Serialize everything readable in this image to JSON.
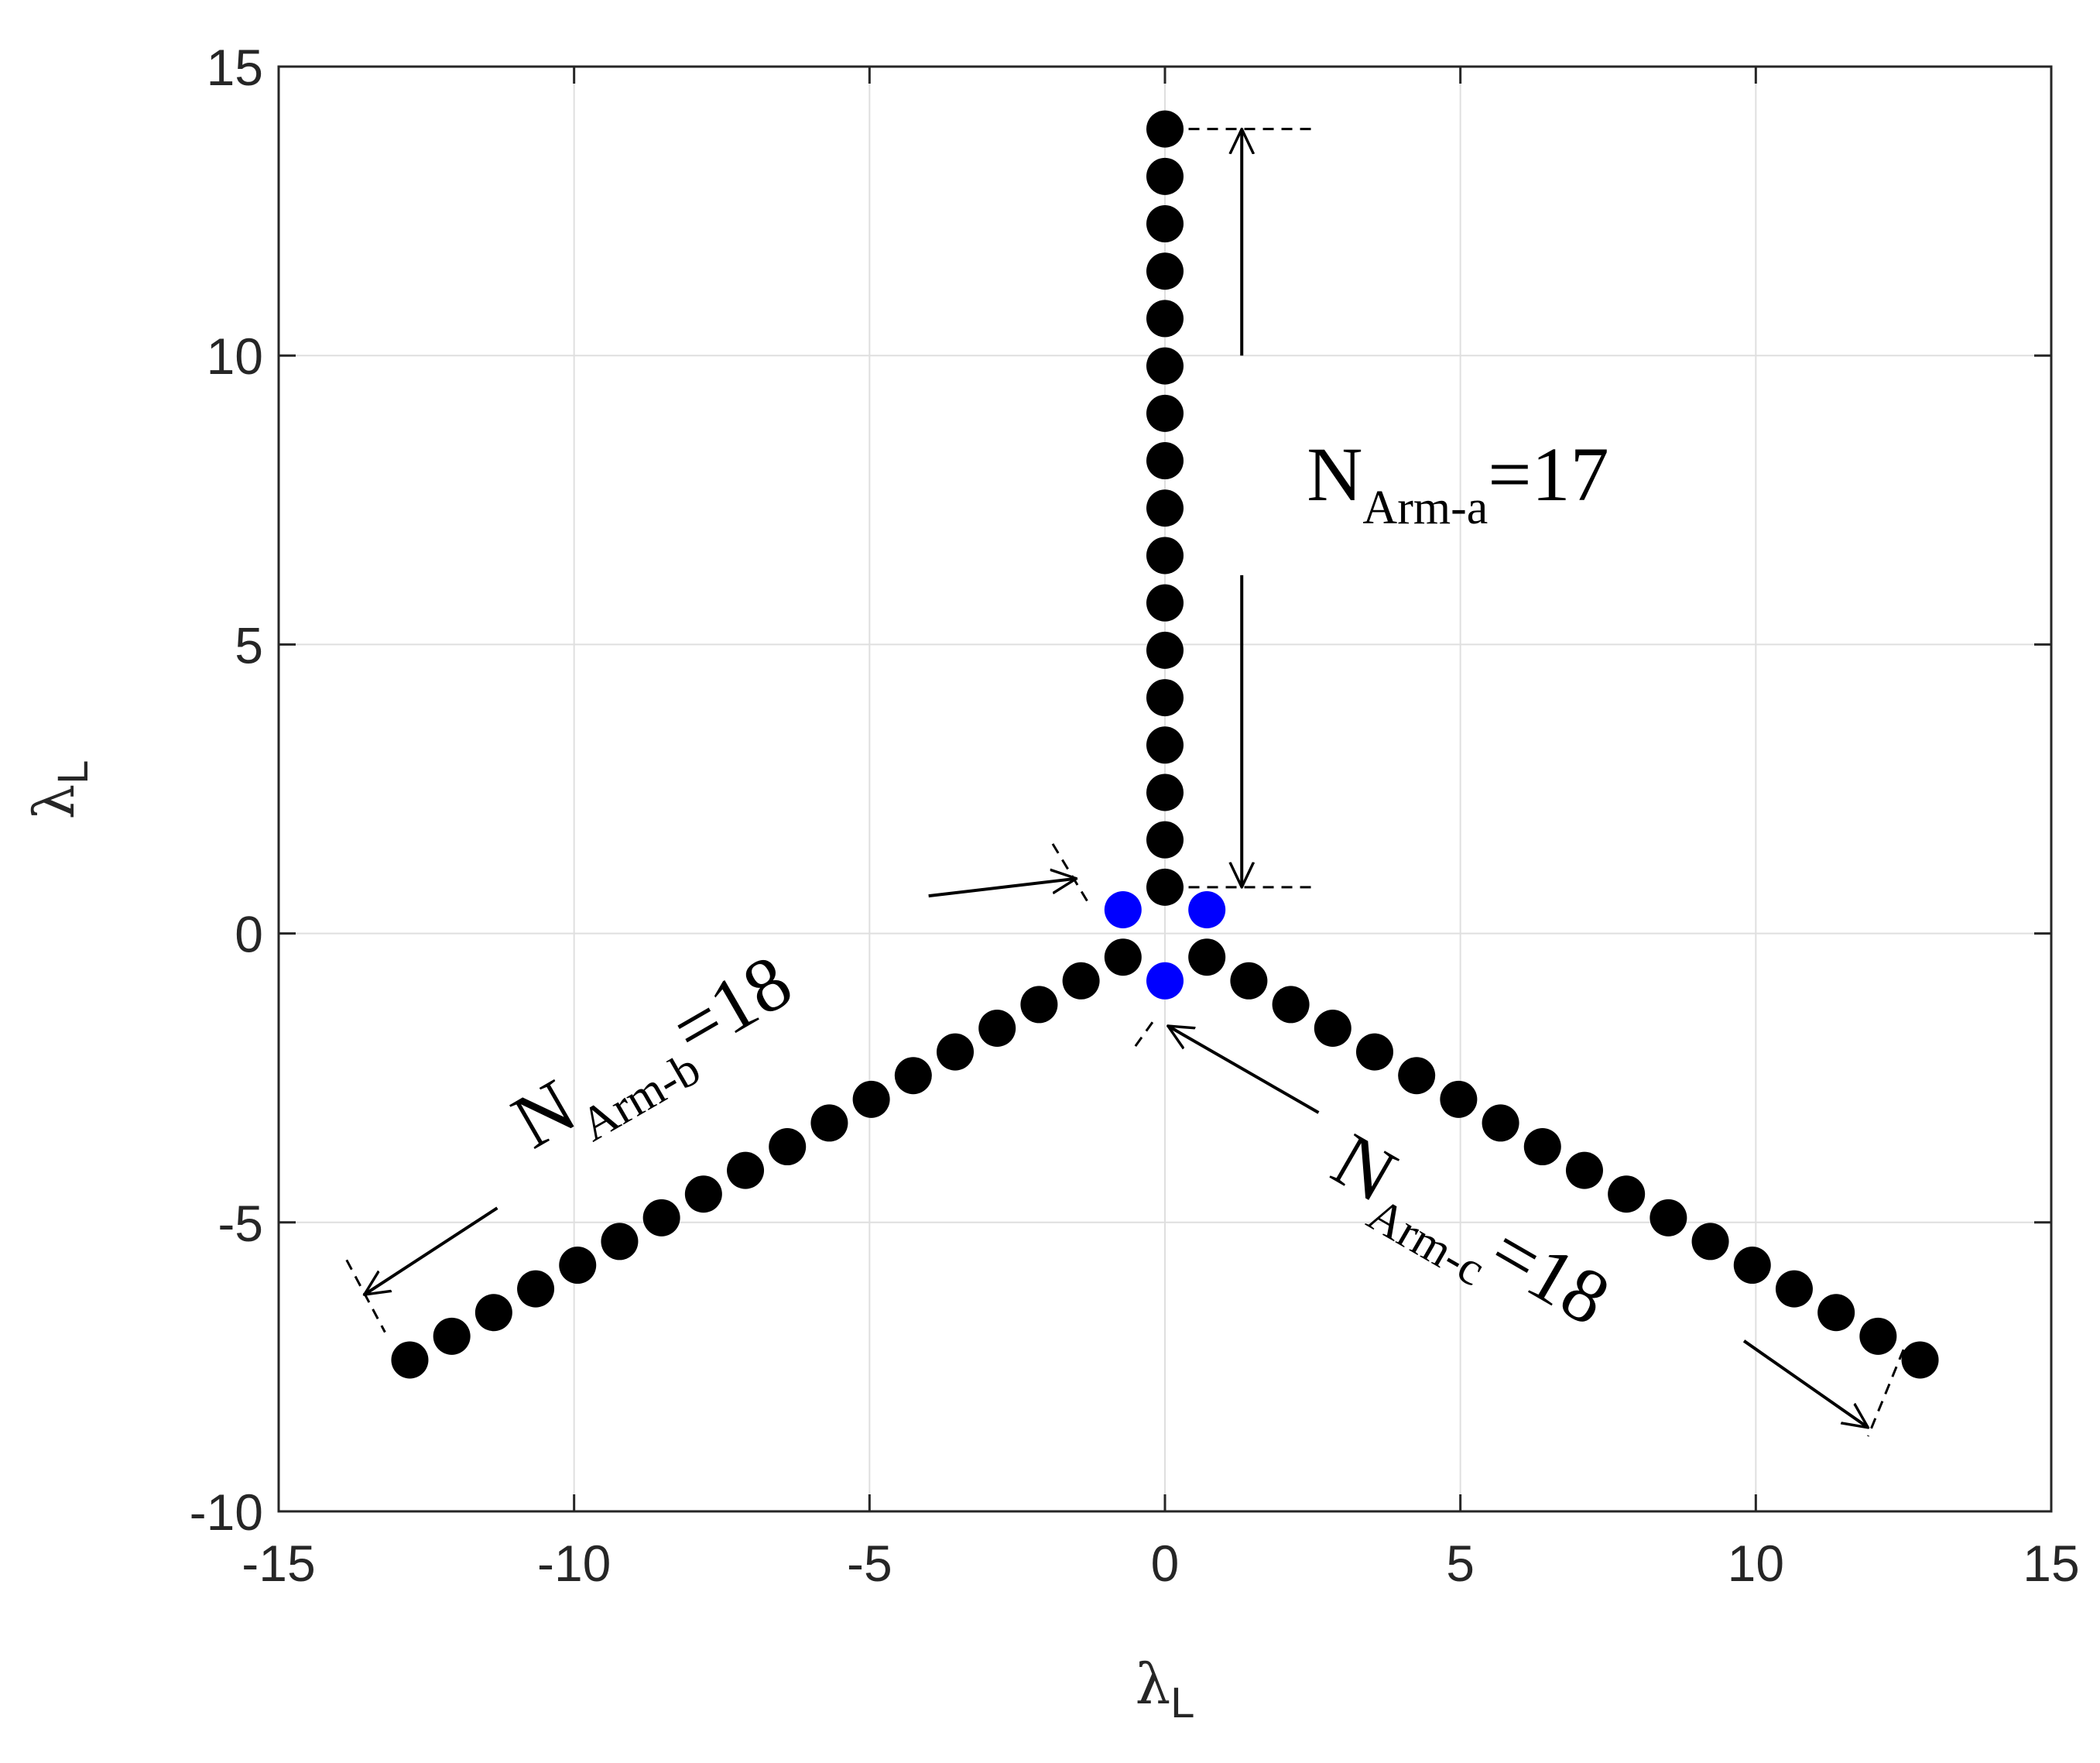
{
  "chart_data": {
    "type": "scatter",
    "title": "",
    "xlabel": {
      "symbol": "λ",
      "sub": "L"
    },
    "ylabel": {
      "symbol": "λ",
      "sub": "L"
    },
    "xlim": [
      -15,
      15
    ],
    "ylim": [
      -10,
      15
    ],
    "xticks": [
      -15,
      -10,
      -5,
      0,
      5,
      10,
      15
    ],
    "yticks": [
      -10,
      -5,
      0,
      5,
      10,
      15
    ],
    "xtick_labels": [
      "-15",
      "-10",
      "-5",
      "0",
      "5",
      "10",
      "15"
    ],
    "ytick_labels": [
      "-10",
      "-5",
      "0",
      "5",
      "10",
      "15"
    ],
    "grid": true,
    "series": [
      {
        "color": "#000000",
        "points": [
          [
            0,
            0.8
          ],
          [
            0,
            1.62
          ],
          [
            0,
            2.44
          ],
          [
            0,
            3.26
          ],
          [
            0,
            4.08
          ],
          [
            0,
            4.9
          ],
          [
            0,
            5.72
          ],
          [
            0,
            6.54
          ],
          [
            0,
            7.36
          ],
          [
            0,
            8.18
          ],
          [
            0,
            9.0
          ],
          [
            0,
            9.82
          ],
          [
            0,
            10.64
          ],
          [
            0,
            11.46
          ],
          [
            0,
            12.28
          ],
          [
            0,
            13.1
          ],
          [
            0,
            13.92
          ],
          [
            -0.71,
            -0.41
          ],
          [
            -1.42,
            -0.82
          ],
          [
            -2.13,
            -1.23
          ],
          [
            -2.84,
            -1.64
          ],
          [
            -3.55,
            -2.05
          ],
          [
            -4.26,
            -2.46
          ],
          [
            -4.97,
            -2.87
          ],
          [
            -5.68,
            -3.28
          ],
          [
            -6.39,
            -3.69
          ],
          [
            -7.1,
            -4.1
          ],
          [
            -7.81,
            -4.51
          ],
          [
            -8.52,
            -4.92
          ],
          [
            -9.23,
            -5.33
          ],
          [
            -9.94,
            -5.74
          ],
          [
            -10.65,
            -6.15
          ],
          [
            -11.36,
            -6.56
          ],
          [
            -12.07,
            -6.97
          ],
          [
            -12.78,
            -7.38
          ],
          [
            0.71,
            -0.41
          ],
          [
            1.42,
            -0.82
          ],
          [
            2.13,
            -1.23
          ],
          [
            2.84,
            -1.64
          ],
          [
            3.55,
            -2.05
          ],
          [
            4.26,
            -2.46
          ],
          [
            4.97,
            -2.87
          ],
          [
            5.68,
            -3.28
          ],
          [
            6.39,
            -3.69
          ],
          [
            7.1,
            -4.1
          ],
          [
            7.81,
            -4.51
          ],
          [
            8.52,
            -4.92
          ],
          [
            9.23,
            -5.33
          ],
          [
            9.94,
            -5.74
          ],
          [
            10.65,
            -6.15
          ],
          [
            11.36,
            -6.56
          ],
          [
            12.07,
            -6.97
          ],
          [
            12.78,
            -7.38
          ]
        ]
      },
      {
        "color": "#0000ff",
        "points": [
          [
            -0.71,
            0.41
          ],
          [
            0.71,
            0.41
          ],
          [
            0,
            -0.82
          ]
        ]
      }
    ],
    "annotations": [
      {
        "main": "N",
        "sub": "Arm-a",
        "rest": "=17",
        "x": 2.4,
        "y": 7.5,
        "angle": 0,
        "size": 100
      },
      {
        "main": "N",
        "sub": "Arm-b",
        "rest": "=18",
        "x": -10.7,
        "y": -3.75,
        "angle": -30,
        "size": 100
      },
      {
        "main": "N",
        "sub": "Arm-c",
        "rest": "=18",
        "x": 2.75,
        "y": -4.2,
        "angle": 30,
        "size": 100
      }
    ],
    "dimension_lines": [
      {
        "arrow": [
          [
            1.3,
            10.0
          ],
          [
            1.3,
            13.92
          ]
        ]
      },
      {
        "arrow": [
          [
            1.3,
            6.2
          ],
          [
            1.3,
            0.8
          ]
        ]
      },
      {
        "dashed": [
          [
            0.4,
            13.92
          ],
          [
            2.6,
            13.92
          ]
        ]
      },
      {
        "dashed": [
          [
            0.4,
            0.8
          ],
          [
            2.6,
            0.8
          ]
        ]
      },
      {
        "dashed": [
          [
            -1.9,
            1.55
          ],
          [
            -1.25,
            0.45
          ]
        ]
      },
      {
        "dashed": [
          [
            -13.85,
            -5.65
          ],
          [
            -13.2,
            -6.9
          ]
        ]
      },
      {
        "dashed": [
          [
            12.5,
            -7.2
          ],
          [
            11.9,
            -8.7
          ]
        ]
      },
      {
        "dashed": [
          [
            -0.5,
            -1.95
          ],
          [
            -0.15,
            -1.45
          ]
        ]
      },
      {
        "arrow": [
          [
            -4.0,
            0.65
          ],
          [
            -1.5,
            0.95
          ]
        ]
      },
      {
        "arrow": [
          [
            -11.3,
            -4.75
          ],
          [
            -13.55,
            -6.25
          ]
        ]
      },
      {
        "arrow": [
          [
            2.6,
            -3.1
          ],
          [
            0.05,
            -1.6
          ]
        ]
      },
      {
        "arrow": [
          [
            9.8,
            -7.05
          ],
          [
            11.9,
            -8.55
          ]
        ]
      }
    ]
  }
}
